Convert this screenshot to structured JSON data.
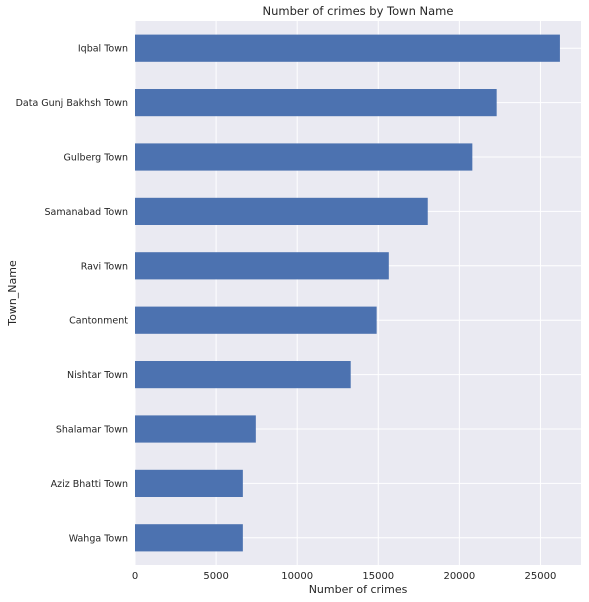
{
  "chart_data": {
    "type": "bar",
    "orientation": "horizontal",
    "title": "Number of crimes by Town Name",
    "xlabel": "Number of crimes",
    "ylabel": "Town_Name",
    "categories": [
      "Iqbal Town",
      "Data Gunj Bakhsh Town",
      "Gulberg Town",
      "Samanabad Town",
      "Ravi Town",
      "Cantonment",
      "Nishtar Town",
      "Shalamar Town",
      "Aziz Bhatti Town",
      "Wahga Town"
    ],
    "values": [
      26200,
      22300,
      20800,
      18050,
      15650,
      14900,
      13300,
      7450,
      6650,
      6650
    ],
    "xlim": [
      0,
      27500
    ],
    "xticks": [
      0,
      5000,
      10000,
      15000,
      20000,
      25000
    ],
    "xtick_labels": [
      "0",
      "5000",
      "10000",
      "15000",
      "20000",
      "25000"
    ],
    "grid": true,
    "colors": {
      "bar": "#4c72b0",
      "plot_background": "#eaeaf2",
      "grid": "#ffffff"
    }
  }
}
